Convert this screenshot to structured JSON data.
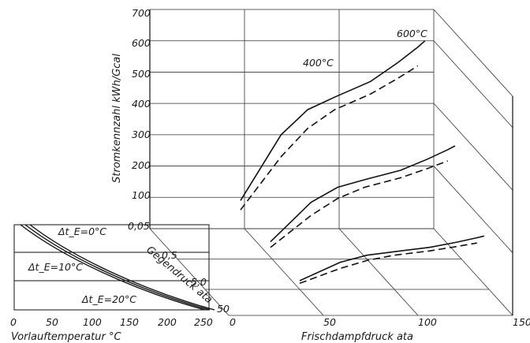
{
  "chart_data": {
    "type": "line",
    "title": "",
    "main": {
      "ylabel": "Stromkennzahl  kWh/Gcal",
      "y_ticks": [
        "0,05",
        "100",
        "200",
        "300",
        "400",
        "500",
        "600",
        "700"
      ],
      "xlabel": "Frischdampfdruck  ata",
      "x_ticks": [
        "0",
        "50",
        "100",
        "150"
      ],
      "depth_label": "Gegendruck ata",
      "depth_ticks": [
        "0,5",
        "5,0",
        "50"
      ],
      "ylim": [
        0,
        700
      ],
      "xlim": [
        0,
        150
      ],
      "series": [
        {
          "name": "600°C",
          "style": "solid",
          "points": [
            [
              1,
              90
            ],
            [
              3,
              300
            ],
            [
              6,
              380
            ],
            [
              12,
              420
            ],
            [
              30,
              470
            ],
            [
              60,
              530
            ],
            [
              100,
              580
            ],
            [
              120,
              600
            ]
          ]
        },
        {
          "name": "400°C",
          "style": "dashed",
          "points": [
            [
              1,
              60
            ],
            [
              3,
              230
            ],
            [
              6,
              320
            ],
            [
              12,
              380
            ],
            [
              30,
              430
            ],
            [
              60,
              480
            ],
            [
              100,
              520
            ]
          ]
        }
      ]
    },
    "inset": {
      "xlabel": "Vorlauftemperatur °C",
      "x_ticks": [
        "0",
        "50",
        "100",
        "150",
        "200",
        "250"
      ],
      "curve_labels": [
        "Δt_E=0°C",
        "Δt_E=10°C",
        "Δt_E=20°C"
      ],
      "xlim": [
        0,
        250
      ]
    }
  }
}
